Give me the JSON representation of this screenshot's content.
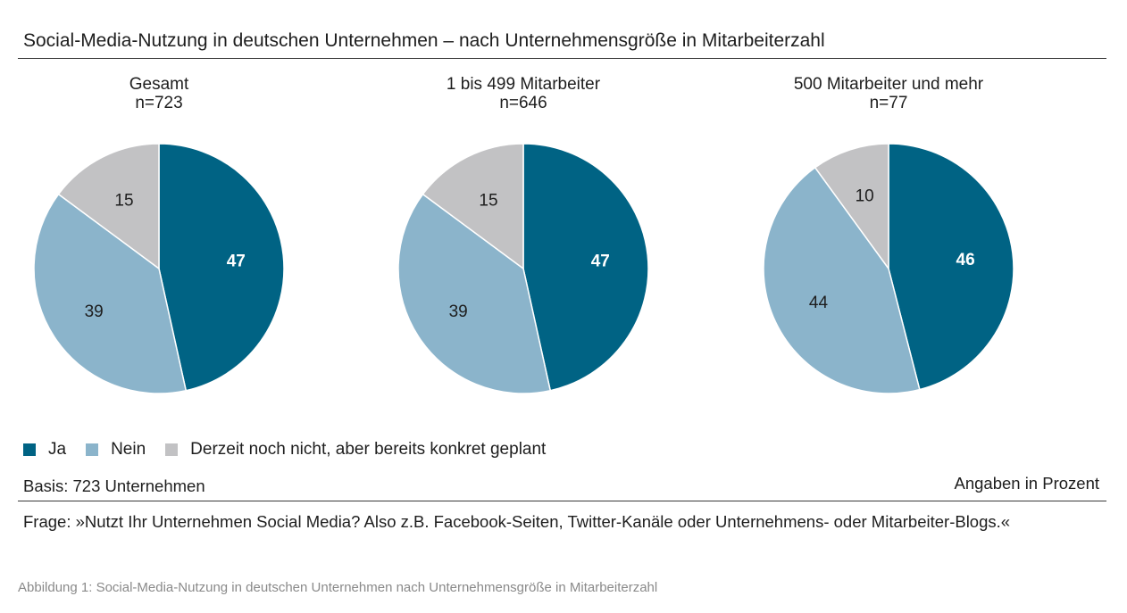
{
  "title": "Social-Media-Nutzung in deutschen Unternehmen – nach Unternehmensgröße in Mitarbeiterzahl",
  "legend": [
    {
      "label": "Ja",
      "color": "#006384"
    },
    {
      "label": "Nein",
      "color": "#8bb4cb"
    },
    {
      "label": "Derzeit noch nicht, aber bereits konkret geplant",
      "color": "#c2c2c4"
    }
  ],
  "basis": "Basis: 723 Unternehmen",
  "unit_note": "Angaben in Prozent",
  "question": "Frage: »Nutzt Ihr Unternehmen Social Media? Also z.B. Facebook-Seiten, Twitter-Kanäle oder Unternehmens- oder Mitarbeiter-Blogs.«",
  "caption": "Abbildung 1: Social-Media-Nutzung in deutschen Unternehmen nach Unternehmensgröße in Mitarbeiterzahl",
  "chart_data": [
    {
      "type": "pie",
      "title": "Gesamt",
      "subtitle": "n=723",
      "categories": [
        "Ja",
        "Nein",
        "Derzeit noch nicht, aber bereits konkret geplant"
      ],
      "values": [
        47,
        39,
        15
      ]
    },
    {
      "type": "pie",
      "title": "1 bis 499 Mitarbeiter",
      "subtitle": "n=646",
      "categories": [
        "Ja",
        "Nein",
        "Derzeit noch nicht, aber bereits konkret geplant"
      ],
      "values": [
        47,
        39,
        15
      ]
    },
    {
      "type": "pie",
      "title": "500 Mitarbeiter und mehr",
      "subtitle": "n=77",
      "categories": [
        "Ja",
        "Nein",
        "Derzeit noch nicht, aber bereits konkret geplant"
      ],
      "values": [
        46,
        44,
        10
      ]
    }
  ]
}
